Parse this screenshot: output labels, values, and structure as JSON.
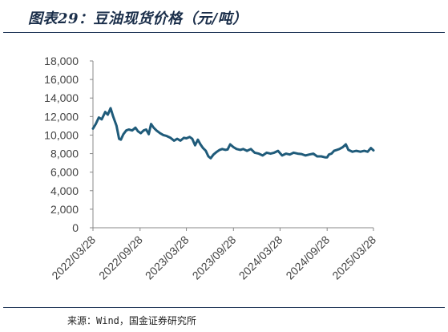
{
  "header": {
    "title": "图表29：豆油现货价格（元/吨）"
  },
  "footer": {
    "source": "来源：Wind，国金证券研究所"
  },
  "chart_data": {
    "type": "line",
    "title": "图表29：豆油现货价格（元/吨）",
    "xlabel": "",
    "ylabel": "",
    "ylim": [
      0,
      18000
    ],
    "yticks": [
      "0",
      "2,000",
      "4,000",
      "6,000",
      "8,000",
      "10,000",
      "12,000",
      "14,000",
      "16,000",
      "18,000"
    ],
    "xticks": [
      "2022/03/28",
      "2022/09/28",
      "2023/03/28",
      "2023/09/28",
      "2024/03/28",
      "2024/09/28",
      "2025/03/28"
    ],
    "grid": false,
    "legend": "none",
    "colors": {
      "line": "#1f5b7a",
      "axis": "#888888"
    },
    "series": [
      {
        "x": [
          "2022/03/28",
          "2022/04/08",
          "2022/04/20",
          "2022/05/01",
          "2022/05/15",
          "2022/05/25",
          "2022/06/05",
          "2022/06/15",
          "2022/06/28",
          "2022/07/08",
          "2022/07/15",
          "2022/07/25",
          "2022/08/05",
          "2022/08/15",
          "2022/08/28",
          "2022/09/10",
          "2022/09/20",
          "2022/10/01",
          "2022/10/12",
          "2022/10/22",
          "2022/11/01",
          "2022/11/10",
          "2022/11/20",
          "2022/12/01",
          "2022/12/15",
          "2022/12/28",
          "2023/01/10",
          "2023/01/25",
          "2023/02/08",
          "2023/02/20",
          "2023/03/05",
          "2023/03/18",
          "2023/03/28",
          "2023/04/10",
          "2023/04/20",
          "2023/05/01",
          "2023/05/12",
          "2023/05/22",
          "2023/06/01",
          "2023/06/12",
          "2023/06/22",
          "2023/07/01",
          "2023/07/12",
          "2023/07/25",
          "2023/08/05",
          "2023/08/15",
          "2023/08/28",
          "2023/09/05",
          "2023/09/15",
          "2023/09/28",
          "2023/10/10",
          "2023/10/25",
          "2023/11/05",
          "2023/11/20",
          "2023/12/05",
          "2023/12/20",
          "2024/01/05",
          "2024/01/20",
          "2024/02/05",
          "2024/02/20",
          "2024/03/05",
          "2024/03/20",
          "2024/04/05",
          "2024/04/20",
          "2024/05/05",
          "2024/05/20",
          "2024/06/05",
          "2024/06/20",
          "2024/07/05",
          "2024/07/20",
          "2024/08/05",
          "2024/08/20",
          "2024/09/05",
          "2024/09/20",
          "2024/09/28",
          "2024/10/05",
          "2024/10/15",
          "2024/10/25",
          "2024/11/05",
          "2024/11/15",
          "2024/11/28",
          "2024/12/10",
          "2024/12/20",
          "2025/01/05",
          "2025/01/20",
          "2025/02/05",
          "2025/02/20",
          "2025/03/05",
          "2025/03/18",
          "2025/03/28"
        ],
        "values": [
          10700,
          11200,
          11900,
          11700,
          12500,
          12200,
          12900,
          12000,
          11000,
          9600,
          9500,
          10100,
          10500,
          10600,
          10500,
          10800,
          10400,
          10200,
          10500,
          10600,
          10100,
          11200,
          10800,
          10500,
          10200,
          10000,
          9900,
          9700,
          9400,
          9600,
          9400,
          9700,
          9650,
          9800,
          9600,
          8900,
          9500,
          9000,
          8600,
          8300,
          7700,
          7500,
          7900,
          8200,
          8400,
          8500,
          8400,
          8450,
          9000,
          8700,
          8500,
          8400,
          8500,
          8300,
          8500,
          8100,
          8000,
          7800,
          8100,
          8000,
          8100,
          8300,
          7800,
          8000,
          7900,
          8100,
          8000,
          7950,
          7800,
          7900,
          8000,
          7700,
          7700,
          7600,
          7600,
          7900,
          8000,
          8300,
          8400,
          8500,
          8700,
          9000,
          8400,
          8200,
          8300,
          8200,
          8300,
          8200,
          8600,
          8350
        ]
      }
    ]
  }
}
